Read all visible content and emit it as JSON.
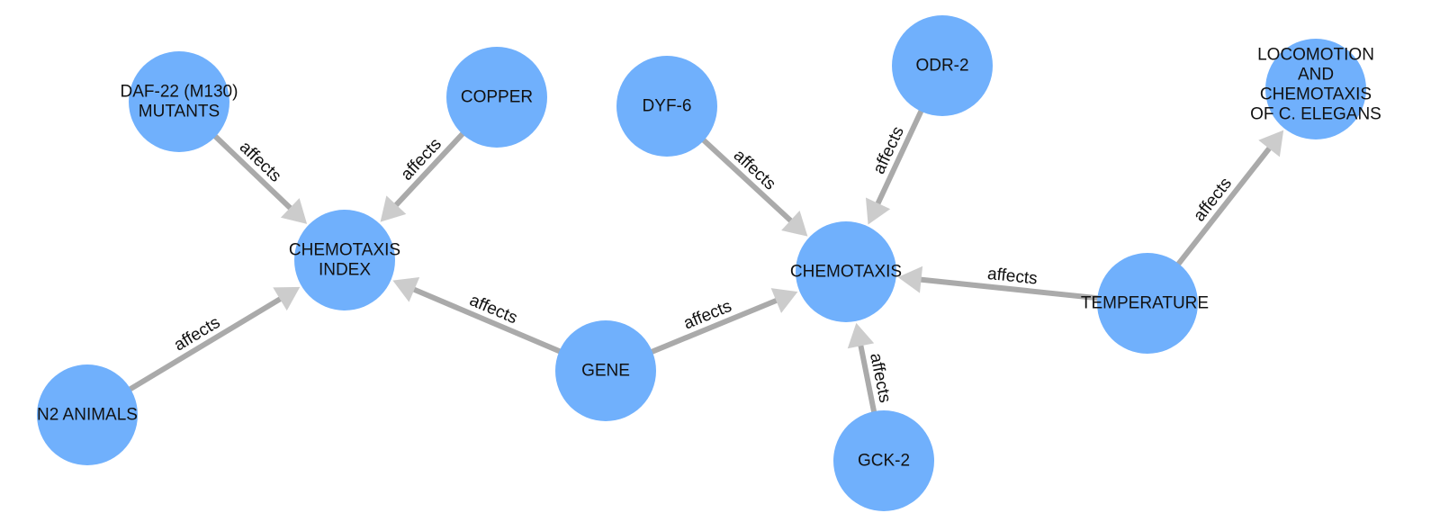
{
  "graph": {
    "nodes": [
      {
        "id": "daf22",
        "lines": [
          "DAF-22 (M130)",
          "MUTANTS"
        ]
      },
      {
        "id": "copper",
        "lines": [
          "COPPER"
        ]
      },
      {
        "id": "dyf6",
        "lines": [
          "DYF-6"
        ]
      },
      {
        "id": "odr2",
        "lines": [
          "ODR-2"
        ]
      },
      {
        "id": "locomotion",
        "lines": [
          "LOCOMOTION",
          "AND",
          "CHEMOTAXIS",
          "OF C. ELEGANS"
        ]
      },
      {
        "id": "chemoindex",
        "lines": [
          "CHEMOTAXIS",
          "INDEX"
        ]
      },
      {
        "id": "chemotaxis",
        "lines": [
          "CHEMOTAXIS"
        ]
      },
      {
        "id": "temperature",
        "lines": [
          "TEMPERATURE"
        ]
      },
      {
        "id": "n2",
        "lines": [
          "N2 ANIMALS"
        ]
      },
      {
        "id": "gene",
        "lines": [
          "GENE"
        ]
      },
      {
        "id": "gck2",
        "lines": [
          "GCK-2"
        ]
      }
    ],
    "edges": [
      {
        "from": "daf22",
        "to": "chemoindex",
        "label": "affects"
      },
      {
        "from": "copper",
        "to": "chemoindex",
        "label": "affects"
      },
      {
        "from": "n2",
        "to": "chemoindex",
        "label": "affects"
      },
      {
        "from": "gene",
        "to": "chemoindex",
        "label": "affects"
      },
      {
        "from": "gene",
        "to": "chemotaxis",
        "label": "affects"
      },
      {
        "from": "dyf6",
        "to": "chemotaxis",
        "label": "affects"
      },
      {
        "from": "odr2",
        "to": "chemotaxis",
        "label": "affects"
      },
      {
        "from": "temperature",
        "to": "chemotaxis",
        "label": "affects"
      },
      {
        "from": "gck2",
        "to": "chemotaxis",
        "label": "affects"
      },
      {
        "from": "temperature",
        "to": "locomotion",
        "label": "affects"
      }
    ]
  }
}
